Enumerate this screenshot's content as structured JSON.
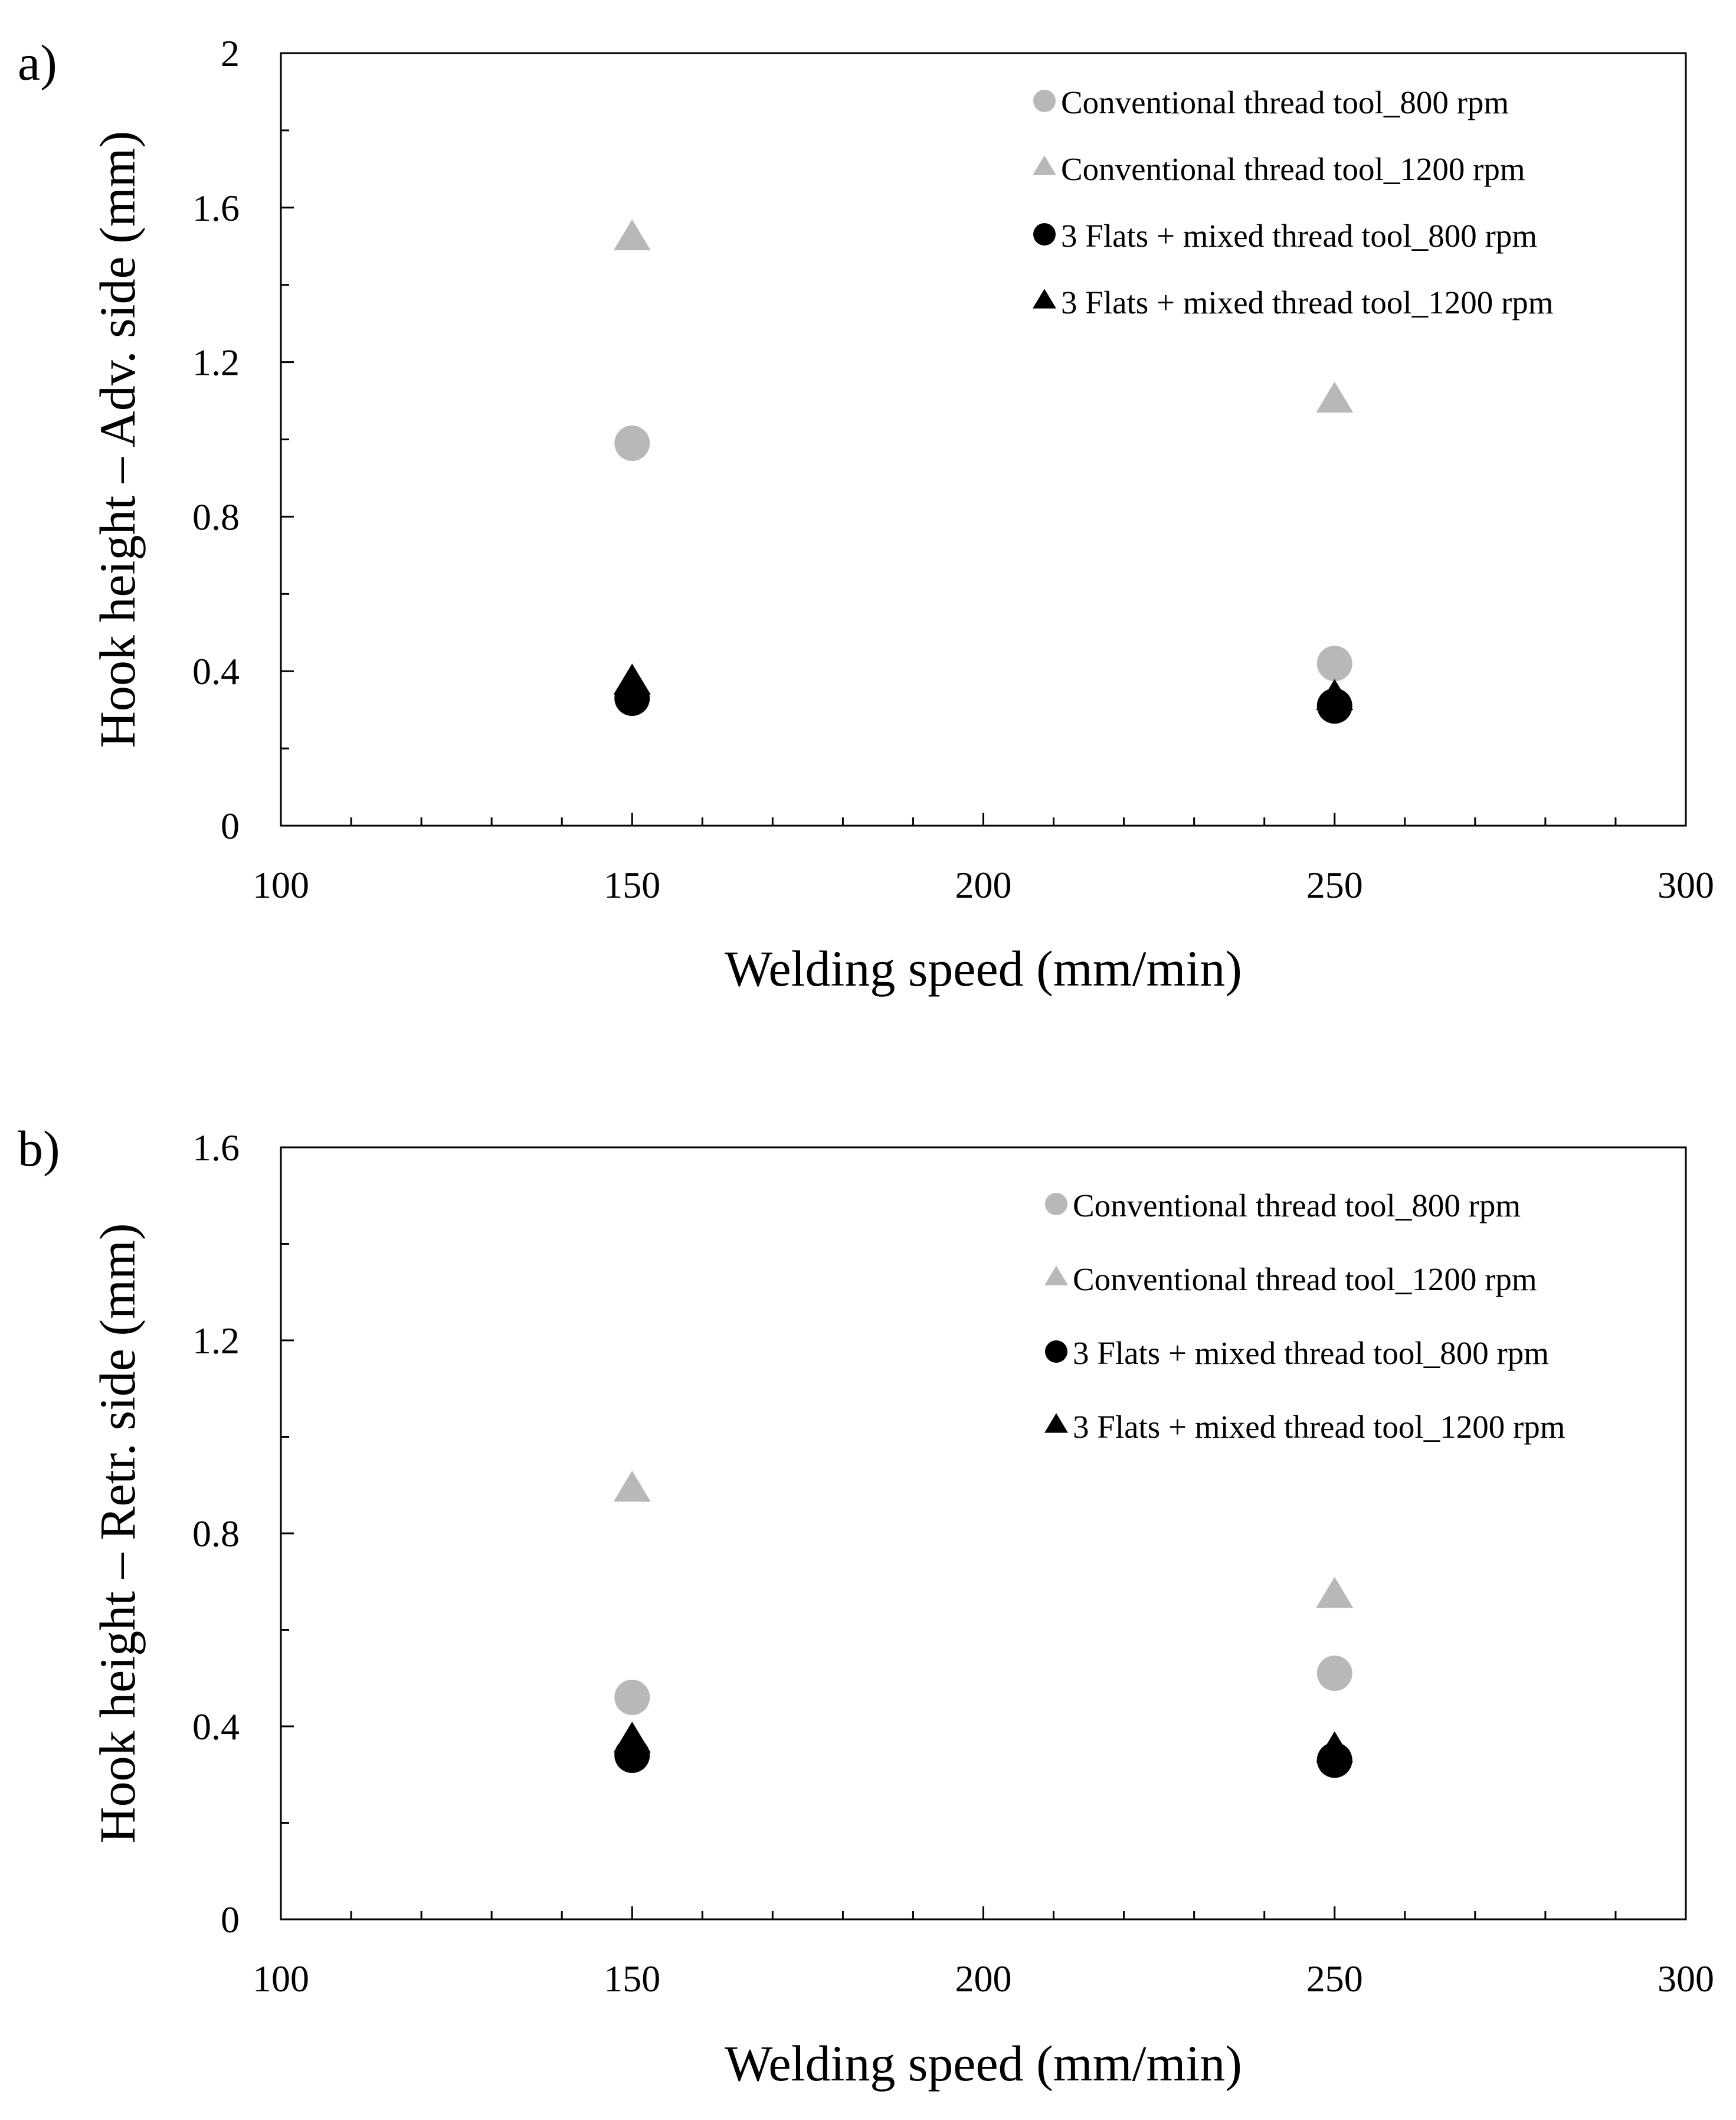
{
  "colors": {
    "gray": "#b8b8b8",
    "black": "#000000"
  },
  "chart_data": [
    {
      "panel_label": "a)",
      "type": "scatter",
      "xlabel": "Welding speed (mm/min)",
      "ylabel": "Hook height – Adv. side (mm)",
      "xlim": [
        100,
        300
      ],
      "ylim": [
        0,
        2
      ],
      "x_ticks": [
        "100",
        "150",
        "200",
        "250",
        "300"
      ],
      "y_ticks": [
        "0",
        "0.4",
        "0.8",
        "1.2",
        "1.6",
        "2"
      ],
      "legend_position": "top-right",
      "grid": false,
      "series": [
        {
          "name": "Conventional thread tool_800 rpm",
          "marker": "circle",
          "color": "#b8b8b8",
          "x": [
            150,
            250
          ],
          "y": [
            0.99,
            0.42
          ]
        },
        {
          "name": "Conventional thread tool_1200 rpm",
          "marker": "triangle",
          "color": "#b8b8b8",
          "x": [
            150,
            250
          ],
          "y": [
            1.52,
            1.1
          ]
        },
        {
          "name": "3 Flats + mixed thread tool_800 rpm",
          "marker": "circle",
          "color": "#000000",
          "x": [
            150,
            250
          ],
          "y": [
            0.33,
            0.31
          ]
        },
        {
          "name": "3 Flats + mixed thread tool_1200 rpm",
          "marker": "triangle",
          "color": "#000000",
          "x": [
            150,
            250
          ],
          "y": [
            0.37,
            0.33
          ]
        }
      ]
    },
    {
      "panel_label": "b)",
      "type": "scatter",
      "xlabel": "Welding speed (mm/min)",
      "ylabel": "Hook height – Retr. side (mm)",
      "xlim": [
        100,
        300
      ],
      "ylim": [
        0,
        1.6
      ],
      "x_ticks": [
        "100",
        "150",
        "200",
        "250",
        "300"
      ],
      "y_ticks": [
        "0",
        "0.4",
        "0.8",
        "1.2",
        "1.6"
      ],
      "legend_position": "top-right",
      "grid": false,
      "series": [
        {
          "name": "Conventional thread tool_800 rpm",
          "marker": "circle",
          "color": "#b8b8b8",
          "x": [
            150,
            250
          ],
          "y": [
            0.46,
            0.51
          ]
        },
        {
          "name": "Conventional thread tool_1200 rpm",
          "marker": "triangle",
          "color": "#b8b8b8",
          "x": [
            150,
            250
          ],
          "y": [
            0.89,
            0.67
          ]
        },
        {
          "name": "3 Flats + mixed thread tool_800 rpm",
          "marker": "circle",
          "color": "#000000",
          "x": [
            150,
            250
          ],
          "y": [
            0.34,
            0.33
          ]
        },
        {
          "name": "3 Flats + mixed thread tool_1200 rpm",
          "marker": "triangle",
          "color": "#000000",
          "x": [
            150,
            250
          ],
          "y": [
            0.37,
            0.35
          ]
        }
      ]
    }
  ]
}
